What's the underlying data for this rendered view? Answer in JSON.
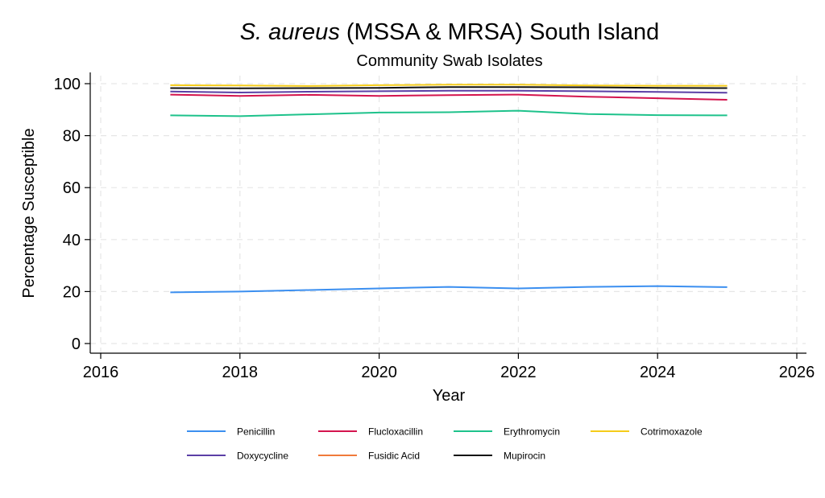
{
  "chart_data": {
    "type": "line",
    "title_italic": "S. aureus",
    "title_rest": " (MSSA & MRSA) South Island",
    "subtitle": "Community Swab Isolates",
    "xlabel": "Year",
    "ylabel": "Percentage Susceptible",
    "xlim": [
      2016,
      2026
    ],
    "ylim": [
      0,
      100
    ],
    "xticks": [
      2016,
      2018,
      2020,
      2022,
      2024,
      2026
    ],
    "yticks": [
      0,
      20,
      40,
      60,
      80,
      100
    ],
    "grid": true,
    "legend_position": "bottom",
    "x": [
      2017,
      2018,
      2019,
      2020,
      2021,
      2022,
      2023,
      2024,
      2025
    ],
    "series": [
      {
        "name": "Penicillin",
        "color": "#3b8ff0",
        "values": [
          19.7,
          20.0,
          20.6,
          21.2,
          21.8,
          21.2,
          21.8,
          22.1,
          21.7
        ]
      },
      {
        "name": "Flucloxacillin",
        "color": "#d4144e",
        "values": [
          95.8,
          95.3,
          95.7,
          95.3,
          95.6,
          95.8,
          95.0,
          94.4,
          93.8
        ]
      },
      {
        "name": "Erythromycin",
        "color": "#1ec28b",
        "values": [
          87.8,
          87.5,
          88.2,
          88.9,
          89.0,
          89.6,
          88.3,
          87.9,
          87.8
        ]
      },
      {
        "name": "Cotrimoxazole",
        "color": "#f5cc1a",
        "values": [
          99.4,
          99.3,
          99.1,
          99.4,
          99.6,
          99.6,
          99.3,
          99.2,
          99.2
        ]
      },
      {
        "name": "Doxycycline",
        "color": "#5b3fa6",
        "values": [
          97.0,
          96.6,
          96.9,
          97.1,
          97.3,
          97.3,
          97.1,
          96.8,
          96.5
        ]
      },
      {
        "name": "Fusidic Acid",
        "color": "#f07a3a",
        "values": [
          null,
          null,
          null,
          null,
          null,
          null,
          null,
          null,
          null
        ]
      },
      {
        "name": "Mupirocin",
        "color": "#111111",
        "values": [
          98.3,
          98.2,
          98.3,
          98.4,
          98.7,
          98.7,
          98.6,
          98.4,
          98.3
        ]
      }
    ]
  }
}
